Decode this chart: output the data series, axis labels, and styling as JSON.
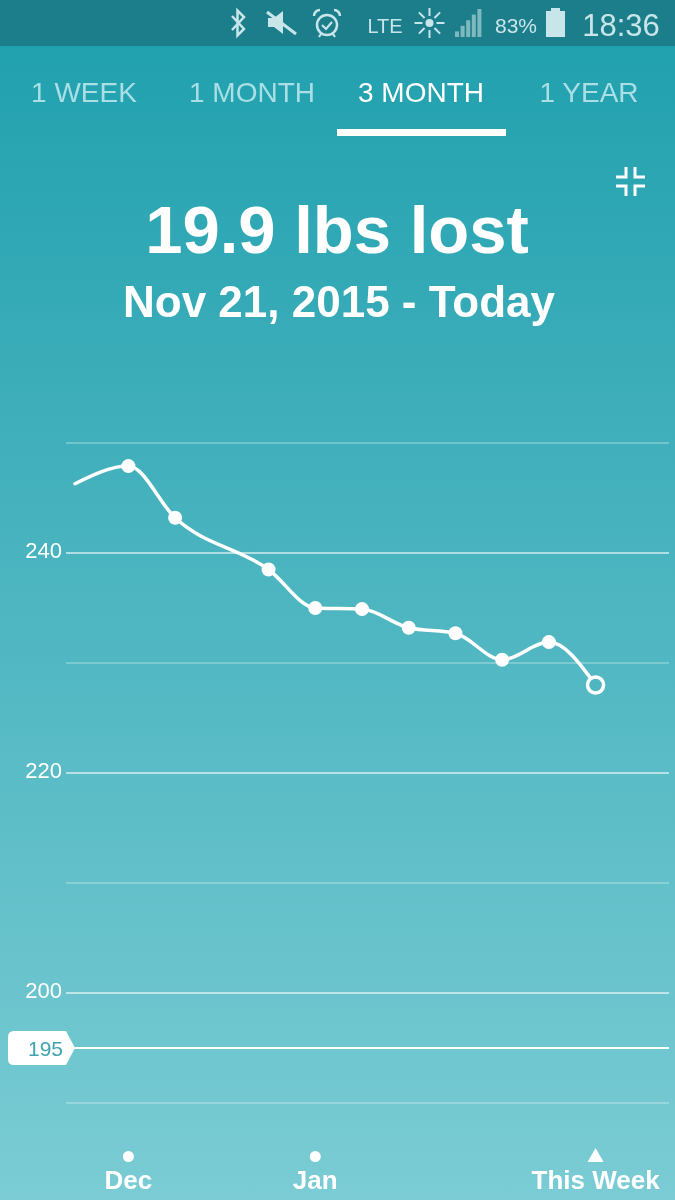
{
  "chart_data": {
    "type": "line",
    "title": "19.9 lbs lost",
    "subtitle": "Nov 21, 2015 - Today",
    "annotations": [
      "LTE",
      "83%",
      "18:36",
      "1 WEEK",
      "1 MONTH",
      "3 MONTH",
      "1 YEAR"
    ],
    "xlim": [
      "2015-11-27",
      "2016-02-24"
    ],
    "xticks": [
      {
        "value": "2015-12-05",
        "label": "Dec"
      },
      {
        "value": "2016-01-02",
        "label": "Jan"
      },
      {
        "value": "2016-02-13",
        "label": "This Week"
      }
    ],
    "ylim": [
      190,
      250
    ],
    "yticks": [
      {
        "value": 250,
        "label": null
      },
      240,
      {
        "value": 230,
        "label": null
      },
      220,
      {
        "value": 210,
        "label": null
      },
      200,
      {
        "value": 190,
        "label": null
      }
    ],
    "grid": "y",
    "ref_lines": [
      {
        "axis": "y",
        "value": 195,
        "label": "195",
        "color": "#ffffff"
      }
    ],
    "series": [
      {
        "color": "#ffffff",
        "marker": "none",
        "x": [
          "2015-11-27",
          "2015-12-05",
          "2015-12-12",
          "2015-12-26",
          "2016-01-02",
          "2016-01-09",
          "2016-01-16",
          "2016-01-23",
          "2016-01-30",
          "2016-02-06",
          "2016-02-13"
        ],
        "values": [
          246.3,
          247.9,
          243.2,
          238.5,
          235.0,
          234.9,
          233.2,
          232.7,
          230.3,
          231.9,
          228.0
        ]
      },
      {
        "type": "scatter",
        "color": "#ffffff",
        "marker": "circle",
        "x": [
          "2015-12-05",
          "2015-12-12",
          "2015-12-26",
          "2016-01-02",
          "2016-01-09",
          "2016-01-16",
          "2016-01-23",
          "2016-01-30",
          "2016-02-06",
          "2016-02-13"
        ],
        "values": [
          247.9,
          243.2,
          238.5,
          235.0,
          234.9,
          233.2,
          232.7,
          230.3,
          231.9,
          228.0
        ]
      }
    ]
  }
}
